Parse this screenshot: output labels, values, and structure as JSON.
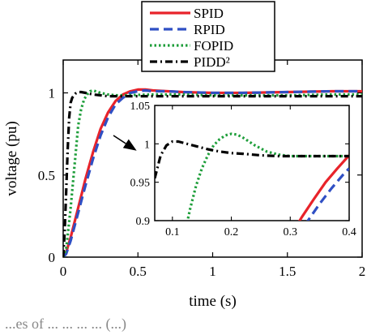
{
  "chart_data": {
    "type": "line",
    "xlabel": "time (s)",
    "ylabel": "voltage (pu)",
    "xlim": [
      0,
      2
    ],
    "ylim": [
      0,
      1.2
    ],
    "xticks": [
      "0",
      "0.5",
      "1",
      "1.5",
      "2"
    ],
    "yticks": [
      "0",
      "0.5",
      "1"
    ],
    "legend_position": "top-center",
    "series": [
      {
        "name": "SPID",
        "color": "#e8232a",
        "dash": "solid",
        "x": [
          0,
          0.02,
          0.05,
          0.1,
          0.15,
          0.2,
          0.25,
          0.3,
          0.35,
          0.4,
          0.45,
          0.5,
          0.55,
          0.6,
          0.7,
          0.8,
          1.0,
          1.2,
          1.5,
          1.8,
          2.0
        ],
        "y": [
          0,
          0.03,
          0.12,
          0.3,
          0.48,
          0.64,
          0.78,
          0.88,
          0.95,
          0.99,
          1.01,
          1.02,
          1.02,
          1.015,
          1.01,
          1.005,
          1.0,
          1.0,
          1.005,
          1.01,
          1.01
        ]
      },
      {
        "name": "RPID",
        "color": "#2f4fc4",
        "dash": "dashed",
        "x": [
          0,
          0.02,
          0.05,
          0.1,
          0.15,
          0.2,
          0.25,
          0.3,
          0.35,
          0.4,
          0.45,
          0.5,
          0.55,
          0.6,
          0.7,
          0.8,
          1.0,
          1.2,
          1.5,
          1.8,
          2.0
        ],
        "y": [
          0,
          0.02,
          0.1,
          0.27,
          0.44,
          0.6,
          0.74,
          0.85,
          0.93,
          0.97,
          1.0,
          1.01,
          1.015,
          1.01,
          1.01,
          1.005,
          1.0,
          1.0,
          1.005,
          1.01,
          1.01
        ]
      },
      {
        "name": "FOPID",
        "color": "#1e9e3a",
        "dash": "dotted",
        "x": [
          0,
          0.02,
          0.05,
          0.08,
          0.1,
          0.12,
          0.14,
          0.16,
          0.18,
          0.2,
          0.25,
          0.3,
          0.35,
          0.4,
          0.6,
          0.8,
          1.0,
          1.2,
          1.5,
          1.8,
          2.0
        ],
        "y": [
          0,
          0.05,
          0.3,
          0.6,
          0.8,
          0.9,
          0.96,
          0.99,
          1.01,
          1.015,
          1.0,
          0.99,
          0.985,
          0.985,
          0.99,
          0.99,
          0.985,
          0.985,
          0.985,
          0.99,
          0.99
        ]
      },
      {
        "name": "PIDD²",
        "color": "#000000",
        "dash": "dashdot",
        "x": [
          0,
          0.01,
          0.02,
          0.03,
          0.04,
          0.05,
          0.06,
          0.08,
          0.1,
          0.12,
          0.15,
          0.2,
          0.25,
          0.3,
          0.35,
          0.4,
          0.6,
          0.8,
          1.0,
          1.2,
          1.5,
          1.8,
          2.0
        ],
        "y": [
          0,
          0.15,
          0.4,
          0.65,
          0.85,
          0.94,
          0.97,
          0.995,
          1.005,
          1.005,
          1.0,
          0.99,
          0.985,
          0.98,
          0.98,
          0.98,
          0.98,
          0.98,
          0.98,
          0.98,
          0.98,
          0.98,
          0.98
        ]
      }
    ],
    "inset": {
      "xlim": [
        0.07,
        0.4
      ],
      "ylim": [
        0.9,
        1.05
      ],
      "xticks": [
        "0.1",
        "0.2",
        "0.3",
        "0.4"
      ],
      "yticks": [
        "0.9",
        "0.95",
        "1",
        "1.05"
      ],
      "series": [
        {
          "name": "SPID",
          "x": [
            0.3,
            0.32,
            0.34,
            0.36,
            0.38,
            0.4
          ],
          "y": [
            0.88,
            0.905,
            0.928,
            0.95,
            0.968,
            0.985
          ]
        },
        {
          "name": "RPID",
          "x": [
            0.31,
            0.33,
            0.35,
            0.37,
            0.39,
            0.4
          ],
          "y": [
            0.88,
            0.9,
            0.922,
            0.942,
            0.96,
            0.968
          ]
        },
        {
          "name": "FOPID",
          "x": [
            0.12,
            0.13,
            0.14,
            0.15,
            0.16,
            0.17,
            0.18,
            0.19,
            0.2,
            0.21,
            0.22,
            0.24,
            0.26,
            0.28,
            0.3,
            0.32,
            0.35,
            0.38,
            0.4
          ],
          "y": [
            0.88,
            0.915,
            0.945,
            0.968,
            0.985,
            0.998,
            1.006,
            1.011,
            1.013,
            1.012,
            1.008,
            0.998,
            0.99,
            0.986,
            0.984,
            0.984,
            0.984,
            0.984,
            0.984
          ]
        },
        {
          "name": "PIDD²",
          "x": [
            0.07,
            0.08,
            0.09,
            0.1,
            0.11,
            0.12,
            0.13,
            0.14,
            0.16,
            0.18,
            0.2,
            0.22,
            0.25,
            0.28,
            0.3,
            0.32,
            0.35,
            0.38,
            0.4
          ],
          "y": [
            0.955,
            0.985,
            0.998,
            1.003,
            1.003,
            1.001,
            0.999,
            0.997,
            0.993,
            0.99,
            0.988,
            0.987,
            0.985,
            0.984,
            0.984,
            0.984,
            0.984,
            0.984,
            0.984
          ]
        }
      ]
    }
  },
  "caption_fragment": "...es of ...    ... ...    ... (...)"
}
